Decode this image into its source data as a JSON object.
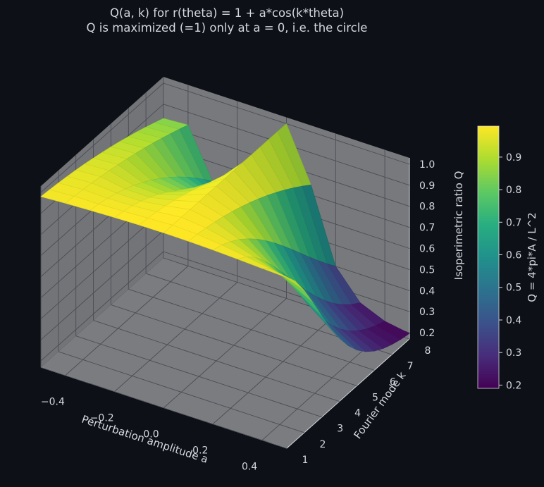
{
  "chart_data": {
    "type": "surface3d",
    "title": "Q(a, k) for r(theta) = 1 + a*cos(k*theta)",
    "subtitle": "Q is maximized (=1) only at a = 0, i.e. the circle",
    "xlabel": "Perturbation amplitude a",
    "ylabel": "Fourier mode k",
    "zlabel": "Isoperimetric ratio Q",
    "colorbar_label": "Q = 4*pi*A / L^2",
    "xlim": [
      -0.5,
      0.5
    ],
    "ylim": [
      1,
      8
    ],
    "zlim": [
      0.17,
      1.03
    ],
    "x_ticks": [
      -0.4,
      -0.2,
      0.0,
      0.2,
      0.4
    ],
    "x_tick_labels": [
      "−0.4",
      "−0.2",
      "0.0",
      "0.2",
      "0.4"
    ],
    "y_ticks": [
      1,
      2,
      3,
      4,
      5,
      6,
      7,
      8
    ],
    "y_tick_labels": [
      "1",
      "2",
      "3",
      "4",
      "5",
      "6",
      "7",
      "8"
    ],
    "z_ticks": [
      0.2,
      0.3,
      0.4,
      0.5,
      0.6,
      0.7,
      0.8,
      0.9,
      1.0
    ],
    "z_tick_labels": [
      "0.2",
      "0.3",
      "0.4",
      "0.5",
      "0.6",
      "0.7",
      "0.8",
      "0.9",
      "1.0"
    ],
    "colorbar_ticks": [
      0.2,
      0.3,
      0.4,
      0.5,
      0.6,
      0.7,
      0.8,
      0.9
    ],
    "colorbar_tick_labels": [
      "0.2",
      "0.3",
      "0.4",
      "0.5",
      "0.6",
      "0.7",
      "0.8",
      "0.9"
    ],
    "colorbar_range": [
      0.19,
      0.995
    ],
    "colormap": "viridis",
    "grid": true,
    "x_grid": [
      -0.5,
      -0.4,
      -0.3,
      -0.2,
      -0.1,
      0.0,
      0.1,
      0.2,
      0.3,
      0.4,
      0.5
    ],
    "y_grid": [
      1,
      1.5,
      2,
      2.5,
      3,
      3.5,
      4,
      4.5,
      5,
      5.5,
      6,
      6.5,
      7,
      7.5,
      8
    ],
    "z_values": [
      [
        0.98,
        0.976,
        0.971,
        0.965,
        0.958,
        0.95,
        0.941,
        0.931,
        0.92,
        0.908,
        0.895,
        0.881,
        0.866,
        0.85,
        0.833
      ],
      [
        0.987,
        0.983,
        0.978,
        0.972,
        0.965,
        0.957,
        0.948,
        0.938,
        0.927,
        0.915,
        0.902,
        0.888,
        0.873,
        0.857,
        0.84
      ],
      [
        0.992,
        0.985,
        0.975,
        0.962,
        0.945,
        0.925,
        0.902,
        0.876,
        0.847,
        0.815,
        0.78,
        0.742,
        0.701,
        0.657,
        0.61
      ],
      [
        0.996,
        0.989,
        0.978,
        0.963,
        0.944,
        0.921,
        0.894,
        0.863,
        0.828,
        0.789,
        0.746,
        0.699,
        0.648,
        0.593,
        0.534
      ],
      [
        0.999,
        0.995,
        0.988,
        0.979,
        0.968,
        0.955,
        0.94,
        0.923,
        0.904,
        0.883,
        0.86,
        0.835,
        0.808,
        0.779,
        0.748
      ],
      [
        1.0,
        1.0,
        1.0,
        1.0,
        1.0,
        1.0,
        1.0,
        1.0,
        1.0,
        1.0,
        1.0,
        1.0,
        1.0,
        1.0,
        1.0
      ],
      [
        0.999,
        0.995,
        0.988,
        0.979,
        0.968,
        0.955,
        0.94,
        0.923,
        0.904,
        0.883,
        0.86,
        0.835,
        0.808,
        0.779,
        0.748
      ],
      [
        0.996,
        0.983,
        0.962,
        0.935,
        0.901,
        0.862,
        0.818,
        0.77,
        0.719,
        0.665,
        0.61,
        0.555,
        0.501,
        0.449,
        0.4
      ],
      [
        0.991,
        0.965,
        0.925,
        0.873,
        0.812,
        0.745,
        0.676,
        0.607,
        0.541,
        0.479,
        0.423,
        0.373,
        0.33,
        0.294,
        0.265
      ],
      [
        0.985,
        0.945,
        0.885,
        0.81,
        0.726,
        0.64,
        0.558,
        0.483,
        0.418,
        0.363,
        0.318,
        0.282,
        0.254,
        0.232,
        0.216
      ],
      [
        0.98,
        0.925,
        0.845,
        0.75,
        0.65,
        0.555,
        0.47,
        0.398,
        0.34,
        0.295,
        0.261,
        0.236,
        0.218,
        0.205,
        0.196
      ]
    ]
  }
}
